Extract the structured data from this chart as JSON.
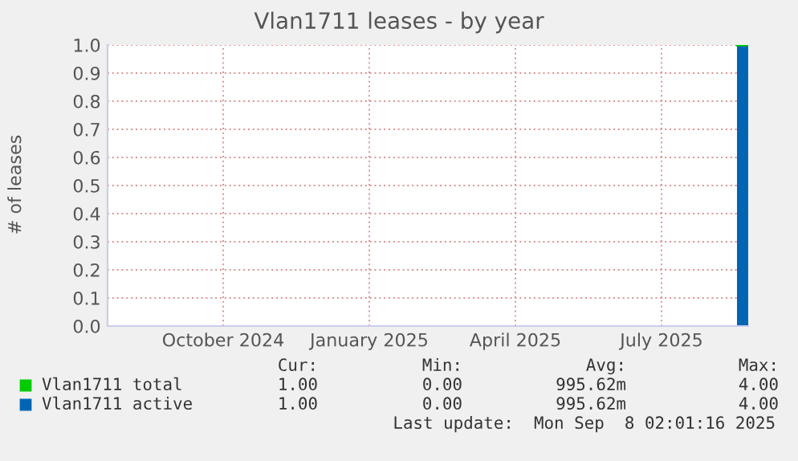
{
  "chart_data": {
    "type": "area",
    "title": "Vlan1711 leases - by year",
    "ylabel": "# of leases",
    "xlim": [
      "2024-08-05",
      "2025-09-08"
    ],
    "xticks": [
      {
        "value": "2024-10-16",
        "label": "October 2024"
      },
      {
        "value": "2025-01-15",
        "label": "January 2025"
      },
      {
        "value": "2025-04-16",
        "label": "April 2025"
      },
      {
        "value": "2025-07-16",
        "label": "July 2025"
      }
    ],
    "ylim": [
      0,
      1
    ],
    "yticks": [
      {
        "value": 0,
        "label": "0.0"
      },
      {
        "value": 0.1,
        "label": "0.1"
      },
      {
        "value": 0.2,
        "label": "0.2"
      },
      {
        "value": 0.3,
        "label": "0.3"
      },
      {
        "value": 0.4,
        "label": "0.4"
      },
      {
        "value": 0.5,
        "label": "0.5"
      },
      {
        "value": 0.6,
        "label": "0.6"
      },
      {
        "value": 0.7,
        "label": "0.7"
      },
      {
        "value": 0.8,
        "label": "0.8"
      },
      {
        "value": 0.9,
        "label": "0.9"
      },
      {
        "value": 1,
        "label": "1.0"
      }
    ],
    "grid": true,
    "legend": "bottom",
    "series": [
      {
        "name": "Vlan1711 total",
        "type": "line",
        "color": "#00cc00",
        "x": [
          "2025-09-01",
          "2025-09-08"
        ],
        "values": [
          1,
          1
        ]
      },
      {
        "name": "Vlan1711 active",
        "color": "#0066b3",
        "x": [
          "2025-09-01",
          "2025-09-08"
        ],
        "values": [
          1,
          1
        ]
      }
    ],
    "annotations": [
      "Cur:",
      "Min:",
      "Avg:",
      "Max:",
      "1.00",
      "0.00",
      "995.62m",
      "4.00",
      "1.00",
      "0.00",
      "995.62m",
      "4.00",
      "Last update:  Mon Sep  8 02:01:16 2025"
    ]
  }
}
